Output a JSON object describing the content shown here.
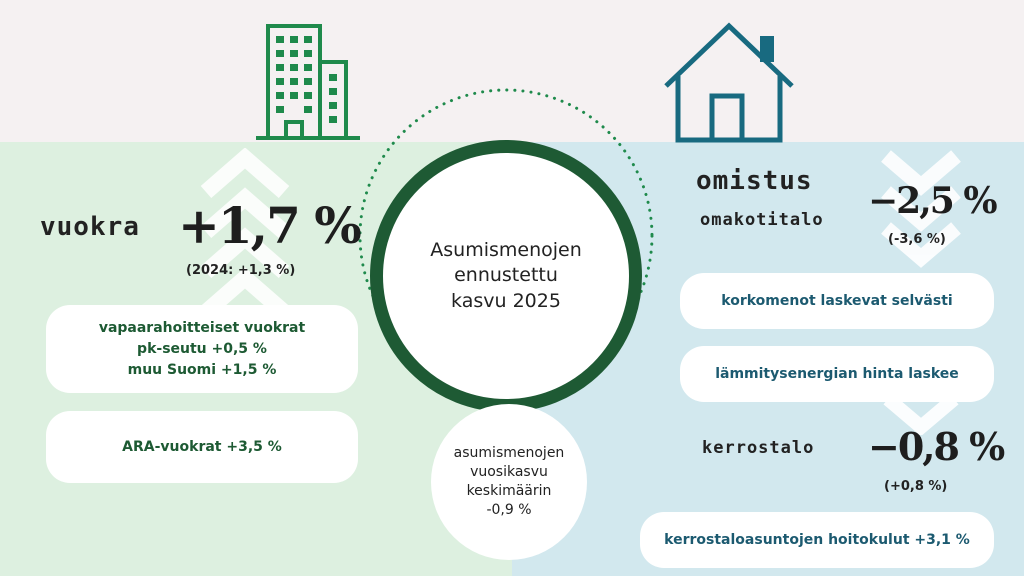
{
  "colors": {
    "green": "#1e5a34",
    "blue": "#186a80",
    "left_bg": "#ddf0e0",
    "right_bg": "#d2e8ee"
  },
  "icons": {
    "left": "apartment-building-icon",
    "right": "house-icon"
  },
  "center": {
    "title": "Asumismenojen\nennustettu\nkasvu 2025"
  },
  "bubble": {
    "text": "asumismenojen\nvuosikasvu\nkeskimäärin\n-0,9 %"
  },
  "rent": {
    "heading": "vuokra",
    "value": "+1,7 %",
    "prev": "(2024: +1,3 %)",
    "pills": [
      "vapaarahoitteiset vuokrat\npk-seutu +0,5 %\nmuu Suomi +1,5 %",
      "ARA-vuokrat +3,5 %"
    ]
  },
  "ownership": {
    "heading": "omistus",
    "house": {
      "label": "omakotitalo",
      "value": "−2,5 %",
      "prev": "(-3,6 %)"
    },
    "pills": [
      "korkomenot laskevat selvästi",
      "lämmitysenergian hinta laskee"
    ],
    "apartment": {
      "label": "kerrostalo",
      "value": "−0,8 %",
      "prev": "(+0,8 %)"
    },
    "apartment_pill": "kerrostaloasuntojen hoitokulut +3,1 %"
  }
}
